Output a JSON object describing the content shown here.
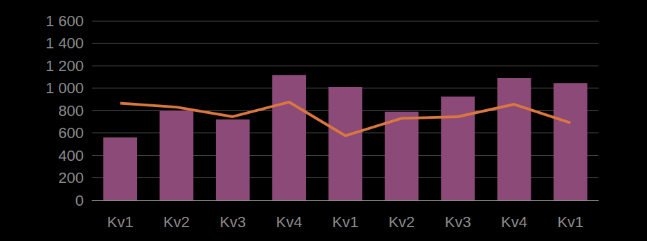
{
  "chart_data": {
    "type": "bar",
    "categories": [
      "Kv1",
      "Kv2",
      "Kv3",
      "Kv4",
      "Kv1",
      "Kv2",
      "Kv3",
      "Kv4",
      "Kv1"
    ],
    "series": [
      {
        "type": "bar",
        "color": "#8b4a78",
        "values": [
          560,
          800,
          720,
          1115,
          1010,
          790,
          925,
          1090,
          1045
        ]
      },
      {
        "type": "line",
        "color": "#d9773f",
        "values": [
          865,
          830,
          745,
          875,
          575,
          730,
          745,
          855,
          690
        ]
      }
    ],
    "ylim": [
      0,
      1600
    ],
    "yticks": [
      0,
      200,
      400,
      600,
      800,
      {
        "value": 1000,
        "label": "1 000"
      },
      {
        "value": 1200,
        "label": "1 200"
      },
      {
        "value": 1400,
        "label": "1 400"
      },
      {
        "value": 1600,
        "label": "1 600"
      }
    ],
    "grid": true
  }
}
